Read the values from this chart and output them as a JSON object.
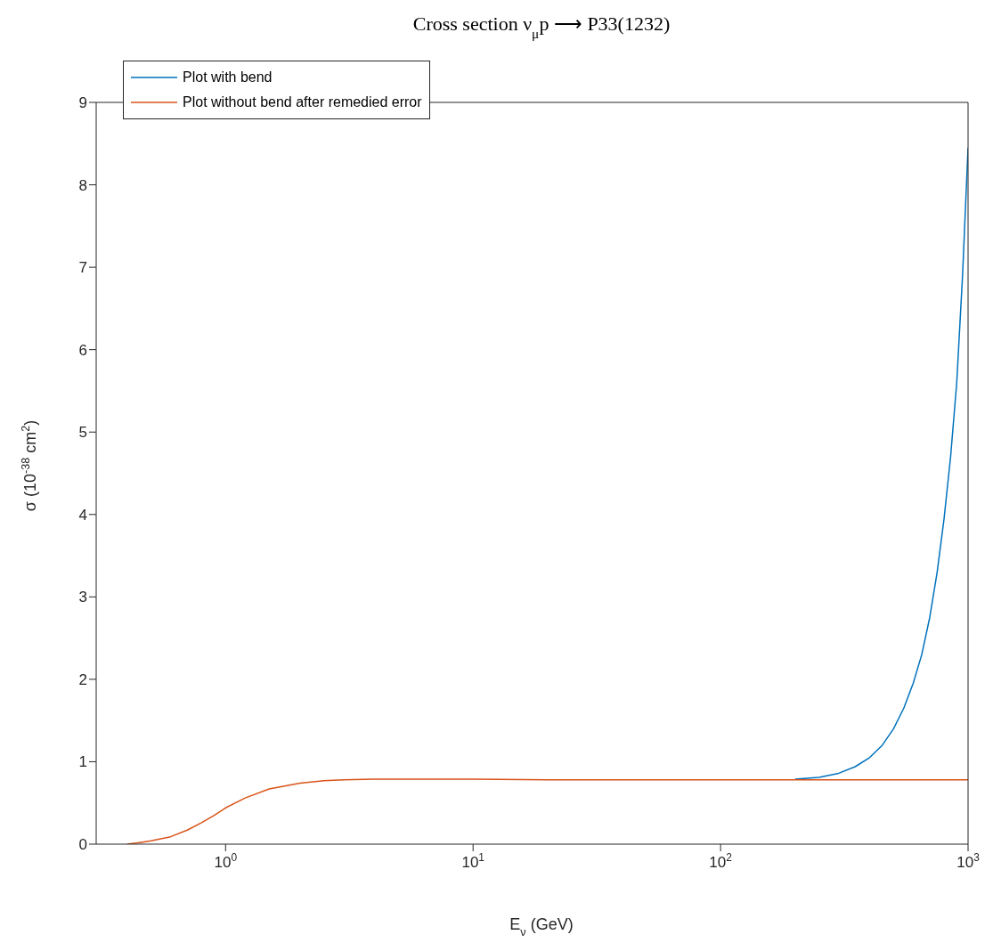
{
  "chart_data": {
    "type": "line",
    "title": "Cross section ν$_{μ}$p ⟶ P33(1232)",
    "xlabel": "E$_{ν}$ (GeV)",
    "ylabel": "σ (10$^{-38}$ cm$^{2}$)",
    "log": "x",
    "xlim": [
      0.3,
      1000
    ],
    "xticks": [
      {
        "value": 1,
        "label": "10$^{0}$"
      },
      {
        "value": 10,
        "label": "10$^{1}$"
      },
      {
        "value": 100,
        "label": "10$^{2}$"
      },
      {
        "value": 1000,
        "label": "10$^{3}$"
      }
    ],
    "ylim": [
      0,
      9
    ],
    "yticks": [
      0,
      1,
      2,
      3,
      4,
      5,
      6,
      7,
      8,
      9
    ],
    "grid": false,
    "legend": "top left",
    "marker": "none",
    "line_style": "solid",
    "series": [
      {
        "name": "Plot with bend",
        "color": "#0072bd",
        "x": [
          200,
          250,
          300,
          350,
          400,
          450,
          500,
          550,
          600,
          650,
          700,
          750,
          800,
          850,
          900,
          950,
          1000
        ],
        "values": [
          0.79,
          0.81,
          0.86,
          0.94,
          1.05,
          1.2,
          1.4,
          1.65,
          1.95,
          2.3,
          2.75,
          3.3,
          3.95,
          4.7,
          5.6,
          6.9,
          8.45
        ]
      },
      {
        "name": "Plot without bend after remedied error",
        "color": "#d95319",
        "x": [
          0.4,
          0.45,
          0.5,
          0.6,
          0.7,
          0.8,
          0.9,
          1,
          1.2,
          1.5,
          2,
          2.5,
          3,
          4,
          5,
          7,
          10,
          20,
          50,
          100,
          200,
          500,
          1000
        ],
        "values": [
          0,
          0.02,
          0.04,
          0.09,
          0.17,
          0.26,
          0.35,
          0.44,
          0.56,
          0.67,
          0.74,
          0.77,
          0.78,
          0.79,
          0.79,
          0.79,
          0.79,
          0.78,
          0.78,
          0.78,
          0.78,
          0.78,
          0.78
        ]
      }
    ]
  }
}
